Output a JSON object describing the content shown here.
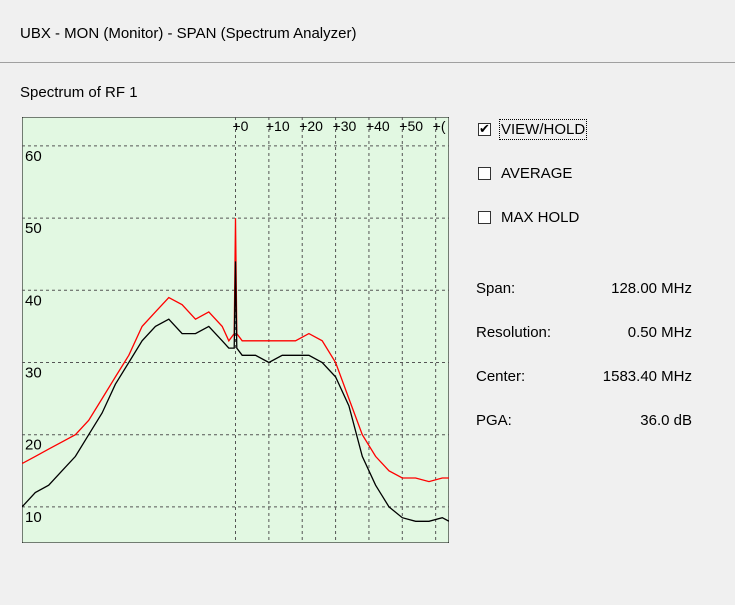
{
  "window": {
    "title": "UBX - MON (Monitor) - SPAN (Spectrum Analyzer)"
  },
  "chart": {
    "caption": "Spectrum of RF 1"
  },
  "options": [
    {
      "label": "VIEW/HOLD",
      "checked": true
    },
    {
      "label": "AVERAGE",
      "checked": false
    },
    {
      "label": "MAX HOLD",
      "checked": false
    }
  ],
  "stats": [
    {
      "label": "Span:",
      "value": "128.00 MHz"
    },
    {
      "label": "Resolution:",
      "value": "0.50 MHz"
    },
    {
      "label": "Center:",
      "value": "1583.40 MHz"
    },
    {
      "label": "PGA:",
      "value": "36.0 dB"
    }
  ],
  "colors": {
    "plot_background": "#e2f8e2",
    "grid": "#555555",
    "current_series": "#000000",
    "hold_series": "#ff0000",
    "spike": "#c00000"
  },
  "chart_data": {
    "type": "line",
    "title": "Spectrum of RF 1",
    "xlabel": "",
    "ylabel": "",
    "y_ticks": [
      "60",
      "50",
      "40",
      "30",
      "20",
      "10"
    ],
    "x_top_ticks": [
      "+0",
      "+10",
      "+20",
      "+30",
      "+40",
      "+50",
      "+("
    ],
    "xlim": [
      1519.4,
      1647.4
    ],
    "ylim": [
      5,
      64
    ],
    "grid": true,
    "series": [
      {
        "color": "#ff0000",
        "x": [
          1519.4,
          1523.4,
          1527.4,
          1531.4,
          1535.4,
          1539.4,
          1543.4,
          1547.4,
          1551.4,
          1555.4,
          1559.4,
          1563.4,
          1567.4,
          1571.4,
          1575.4,
          1579.4,
          1581.4,
          1583.0,
          1583.4,
          1583.8,
          1585.4,
          1589.4,
          1593.4,
          1597.4,
          1601.4,
          1605.4,
          1609.4,
          1613.4,
          1617.4,
          1621.4,
          1625.4,
          1629.4,
          1633.4,
          1637.4,
          1641.4,
          1645.4,
          1647.4
        ],
        "y": [
          16,
          17,
          18,
          19,
          20,
          22,
          25,
          28,
          31,
          35,
          37,
          39,
          38,
          36,
          37,
          35,
          33,
          34,
          50,
          34,
          33,
          33,
          33,
          33,
          33,
          34,
          33,
          30,
          25,
          20,
          17,
          15,
          14,
          14,
          13.5,
          14,
          14
        ]
      },
      {
        "color": "#000000",
        "x": [
          1519.4,
          1523.4,
          1527.4,
          1531.4,
          1535.4,
          1539.4,
          1543.4,
          1547.4,
          1551.4,
          1555.4,
          1559.4,
          1563.4,
          1567.4,
          1571.4,
          1575.4,
          1579.4,
          1581.4,
          1583.0,
          1583.4,
          1583.8,
          1585.4,
          1589.4,
          1593.4,
          1597.4,
          1601.4,
          1605.4,
          1609.4,
          1613.4,
          1617.4,
          1621.4,
          1625.4,
          1629.4,
          1633.4,
          1637.4,
          1641.4,
          1645.4,
          1647.4
        ],
        "y": [
          10,
          12,
          13,
          15,
          17,
          20,
          23,
          27,
          30,
          33,
          35,
          36,
          34,
          34,
          35,
          33,
          32,
          32,
          44,
          32,
          31,
          31,
          30,
          31,
          31,
          31,
          30,
          28,
          24,
          17,
          13,
          10,
          8.5,
          8,
          8,
          8.5,
          8
        ]
      }
    ]
  }
}
